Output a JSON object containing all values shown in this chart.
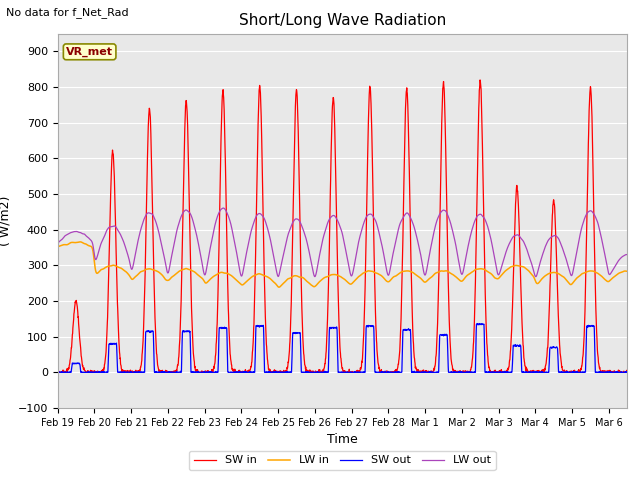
{
  "title": "Short/Long Wave Radiation",
  "top_left_text": "No data for f_Net_Rad",
  "ylabel": "( W/m2)",
  "xlabel": "Time",
  "ylim": [
    -100,
    950
  ],
  "xlim_days": 15.5,
  "plot_bg_color": "#e8e8e8",
  "figure_color": "#ffffff",
  "station_label": "VR_met",
  "legend_entries": [
    "SW in",
    "LW in",
    "SW out",
    "LW out"
  ],
  "line_colors": [
    "red",
    "#FFA500",
    "blue",
    "#AA44BB"
  ],
  "xtick_labels": [
    "Feb 19",
    "Feb 20",
    "Feb 21",
    "Feb 22",
    "Feb 23",
    "Feb 24",
    "Feb 25",
    "Feb 26",
    "Feb 27",
    "Feb 28",
    "Mar 1",
    "Mar 2",
    "Mar 3",
    "Mar 4",
    "Mar 5",
    "Mar 6"
  ],
  "sw_in_peaks": [
    200,
    620,
    740,
    760,
    790,
    800,
    790,
    770,
    800,
    795,
    810,
    820,
    520,
    480,
    800,
    0
  ],
  "sw_out_peaks": [
    25,
    80,
    115,
    115,
    125,
    130,
    110,
    125,
    130,
    120,
    105,
    135,
    75,
    70,
    130,
    0
  ],
  "lw_in_base": [
    350,
    270,
    255,
    255,
    245,
    240,
    235,
    240,
    250,
    250,
    250,
    255,
    265,
    240,
    250,
    255
  ],
  "lw_in_day_bump": [
    15,
    30,
    35,
    35,
    35,
    35,
    35,
    35,
    35,
    35,
    35,
    35,
    35,
    40,
    35,
    30
  ],
  "lw_out_night": [
    360,
    300,
    265,
    265,
    255,
    255,
    255,
    255,
    260,
    260,
    260,
    260,
    265,
    255,
    265,
    265
  ],
  "lw_out_day_peak": [
    395,
    410,
    450,
    455,
    460,
    445,
    430,
    440,
    445,
    445,
    455,
    445,
    385,
    385,
    455,
    330
  ]
}
